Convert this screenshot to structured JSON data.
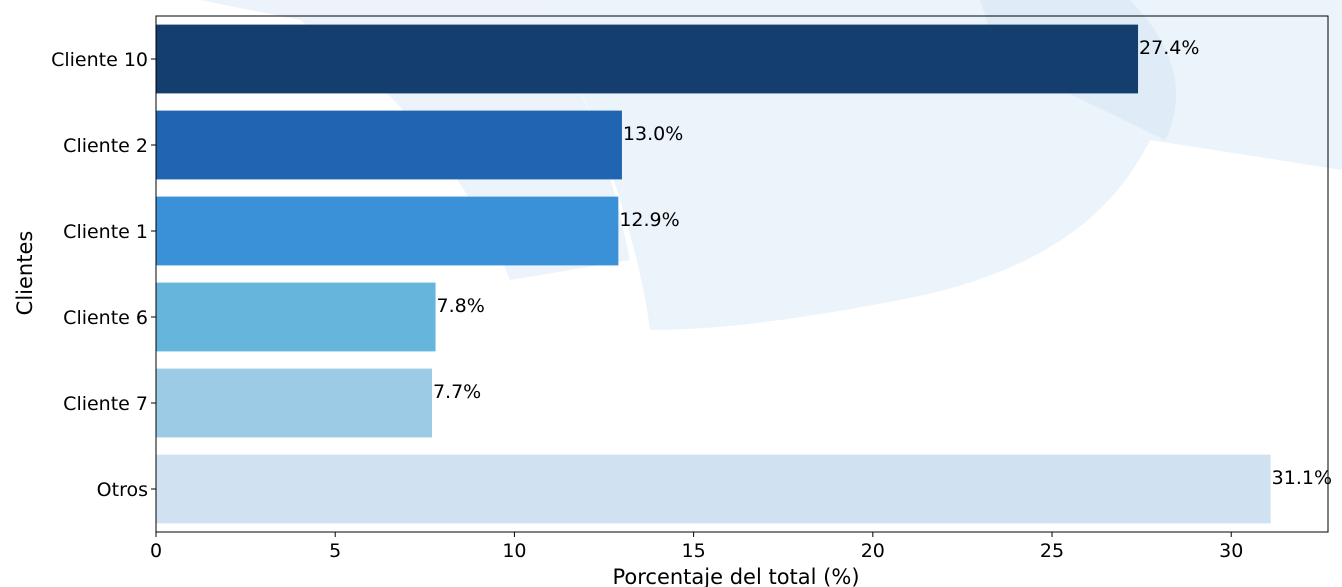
{
  "chart_data": {
    "type": "bar",
    "orientation": "horizontal",
    "title": "",
    "xlabel": "Porcentaje del total (%)",
    "ylabel": "Clientes",
    "xlim": [
      0,
      32.7
    ],
    "xticks": [
      0,
      5,
      10,
      15,
      20,
      25,
      30
    ],
    "grid": false,
    "categories": [
      "Cliente 10",
      "Cliente 2",
      "Cliente 1",
      "Cliente 6",
      "Cliente 7",
      "Otros"
    ],
    "values": [
      27.4,
      13.0,
      12.9,
      7.8,
      7.7,
      31.1
    ],
    "value_labels": [
      "27.4%",
      "13.0%",
      "12.9%",
      "7.8%",
      "7.7%",
      "31.1%"
    ],
    "colors": [
      "#133e6e",
      "#1f65b0",
      "#3a91d8",
      "#65b5dc",
      "#9ccbe5",
      "#d0e2f1"
    ]
  }
}
